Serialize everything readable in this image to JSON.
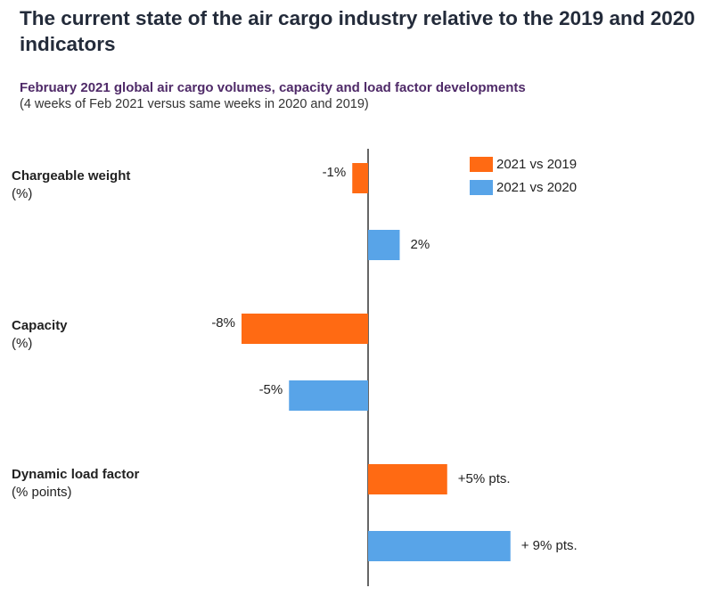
{
  "title": "The current state of the air cargo industry relative to the 2019 and 2020 indicators",
  "subtitle": "February 2021 global air cargo volumes, capacity and load factor developments",
  "note": "(4 weeks of Feb 2021 versus same weeks in 2020 and 2019)",
  "colors": {
    "series_2019": "#ff6a13",
    "series_2020": "#58a4e8",
    "axis": "#333333"
  },
  "chart_data": {
    "type": "bar",
    "orientation": "horizontal",
    "categories": [
      {
        "name": "Chargeable weight",
        "unit": "(%)"
      },
      {
        "name": "Capacity",
        "unit": "(%)"
      },
      {
        "name": "Dynamic load factor",
        "unit": "(% points)"
      }
    ],
    "series": [
      {
        "name": "2021 vs 2019",
        "color": "#ff6a13",
        "values": [
          -1,
          -8,
          5
        ],
        "labels": [
          "-1%",
          "-8%",
          "+5% pts."
        ]
      },
      {
        "name": "2021 vs 2020",
        "color": "#58a4e8",
        "values": [
          2,
          -5,
          9
        ],
        "labels": [
          "2%",
          "-5%",
          "+ 9% pts."
        ]
      }
    ],
    "legend_position": "top-right",
    "grid": false
  }
}
